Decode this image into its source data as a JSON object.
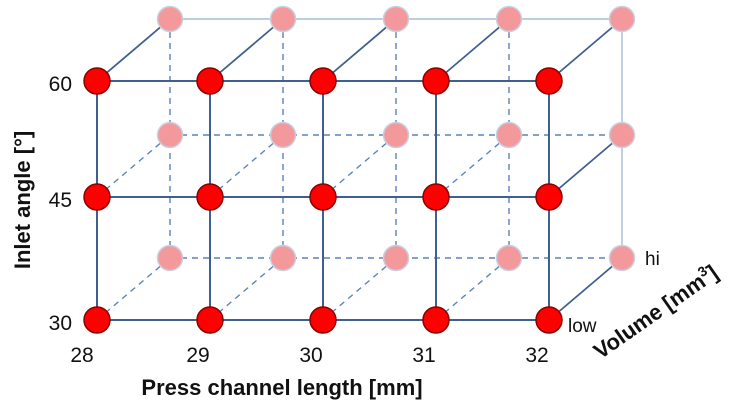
{
  "diagram": {
    "x_axis": {
      "title": "Press channel length [mm]",
      "ticks": [
        "28",
        "29",
        "30",
        "31",
        "32"
      ]
    },
    "y_axis": {
      "title": "Inlet  angle [°]",
      "ticks": [
        "30",
        "45",
        "60"
      ]
    },
    "z_axis": {
      "title_main": "Volume [mm",
      "title_sup": "3",
      "title_end": "]",
      "levels": [
        "low",
        "hi"
      ]
    },
    "colors": {
      "front_node": "#ff0000",
      "front_node_stroke": "#8b0000",
      "back_node": "#f4999b",
      "back_node_stroke": "#c8d0e0",
      "front_edge": "#3f5f8f",
      "back_edge": "#a9bcd6",
      "hidden_edge": "#5b82b8"
    }
  }
}
